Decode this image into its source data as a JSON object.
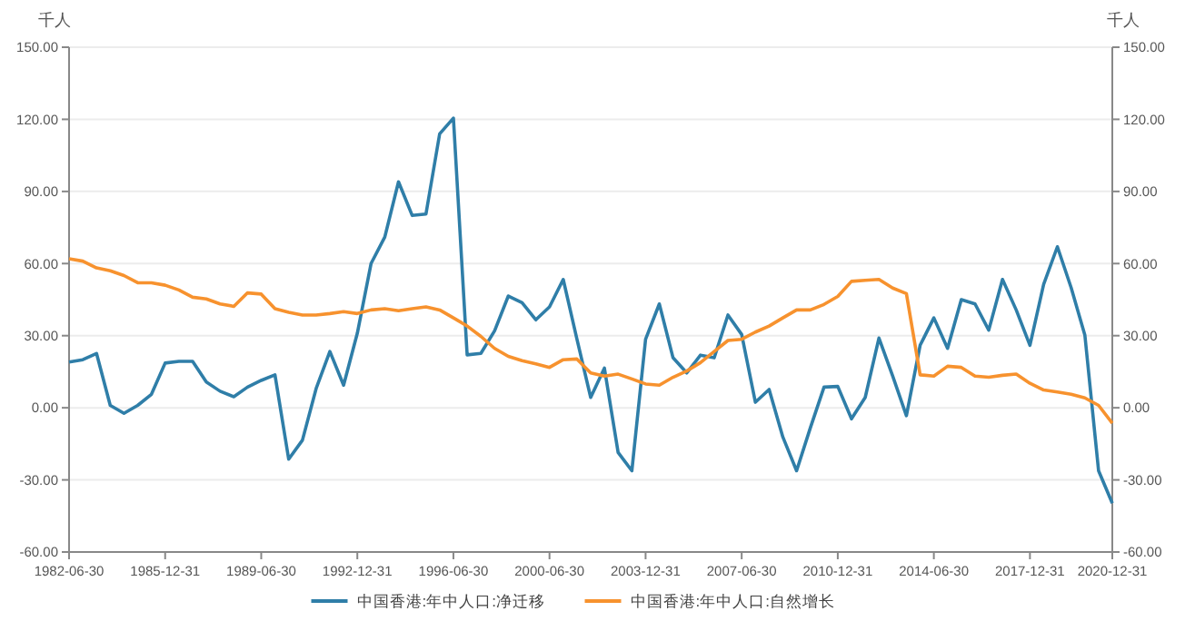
{
  "chart_data": {
    "type": "line",
    "xlabel": null,
    "ylabel": "千人",
    "y2label": "千人",
    "categories": [
      "1982-06-30",
      null,
      null,
      null,
      null,
      null,
      null,
      "1985-12-31",
      null,
      null,
      null,
      null,
      null,
      null,
      "1989-06-30",
      null,
      null,
      null,
      null,
      null,
      null,
      "1992-12-31",
      null,
      null,
      null,
      null,
      null,
      null,
      "1996-06-30",
      null,
      null,
      null,
      null,
      null,
      null,
      "2000-06-30",
      null,
      null,
      null,
      null,
      null,
      null,
      "2003-12-31",
      null,
      null,
      null,
      null,
      null,
      null,
      "2007-06-30",
      null,
      null,
      null,
      null,
      null,
      null,
      "2010-12-31",
      null,
      null,
      null,
      null,
      null,
      null,
      "2014-06-30",
      null,
      null,
      null,
      null,
      null,
      null,
      "2017-12-31",
      null,
      null,
      null,
      null,
      null,
      "2020-12-31"
    ],
    "series": [
      {
        "name": "中国香港:年中人口:净迁移",
        "color": "#2f7ea8",
        "values": [
          19,
          20,
          22.6,
          1,
          -2.3,
          1,
          5.6,
          18.6,
          19.3,
          19.3,
          10.7,
          6.9,
          4.6,
          8.6,
          11.4,
          13.7,
          -21.4,
          -13.5,
          8,
          23.4,
          9.4,
          31,
          60,
          71,
          94,
          80,
          80.6,
          114,
          120.5,
          22,
          22.6,
          32,
          46.5,
          43.7,
          36.6,
          42,
          53.4,
          28.5,
          4.3,
          16.5,
          -18.6,
          -26.2,
          28.5,
          43.2,
          20.8,
          14.5,
          21.9,
          20.8,
          38.6,
          30.5,
          2.3,
          7.6,
          -12.2,
          -26.2,
          -8.4,
          8.6,
          8.9,
          -4.6,
          4.3,
          29,
          13.2,
          -3.3,
          26,
          37.4,
          24.7,
          45,
          43.2,
          32.3,
          53.4,
          40.7,
          26,
          51.4,
          67,
          50,
          30.3,
          -26.2,
          -39.7
        ]
      },
      {
        "name": "中国香港:年中人口:自然增长",
        "color": "#f7922e",
        "values": [
          62,
          61,
          58.2,
          57,
          55,
          52,
          52,
          51,
          49,
          46,
          45.3,
          43.2,
          42.2,
          47.8,
          47.3,
          41.2,
          39.7,
          38.6,
          38.6,
          39.2,
          40,
          39.2,
          40.7,
          41.2,
          40.4,
          41.2,
          42,
          40.7,
          37.4,
          34,
          29.7,
          24.7,
          21.4,
          19.6,
          18.3,
          16.8,
          20,
          20.3,
          14.5,
          13.2,
          14,
          12,
          9.9,
          9.4,
          12.7,
          15.3,
          18.8,
          23.4,
          28,
          28.5,
          31.5,
          34,
          37.4,
          40.7,
          40.7,
          43,
          46.3,
          52.6,
          53,
          53.4,
          49.8,
          47.5,
          13.7,
          13.2,
          17.3,
          16.8,
          13.2,
          12.7,
          13.5,
          14,
          10.2,
          7.4,
          6.6,
          5.6,
          4.1,
          1,
          -6.4
        ]
      }
    ],
    "ylim": [
      -60,
      150
    ],
    "yticks": [
      {
        "value": -60,
        "label": "-60.00"
      },
      {
        "value": -30,
        "label": "-30.00"
      },
      {
        "value": 0,
        "label": "0.00"
      },
      {
        "value": 30,
        "label": "30.00"
      },
      {
        "value": 60,
        "label": "60.00"
      },
      {
        "value": 90,
        "label": "90.00"
      },
      {
        "value": 120,
        "label": "120.00"
      },
      {
        "value": 150,
        "label": "150.00"
      }
    ],
    "y2lim": [
      -60,
      150
    ],
    "y2ticks": [
      {
        "value": -60,
        "label": "-60.00"
      },
      {
        "value": -30,
        "label": "-30.00"
      },
      {
        "value": 0,
        "label": "0.00"
      },
      {
        "value": 30,
        "label": "30.00"
      },
      {
        "value": 60,
        "label": "60.00"
      },
      {
        "value": 90,
        "label": "90.00"
      },
      {
        "value": 120,
        "label": "120.00"
      },
      {
        "value": 150,
        "label": "150.00"
      }
    ],
    "grid": "y",
    "legend": "bottom",
    "marker": "none",
    "line_style": "solid"
  }
}
